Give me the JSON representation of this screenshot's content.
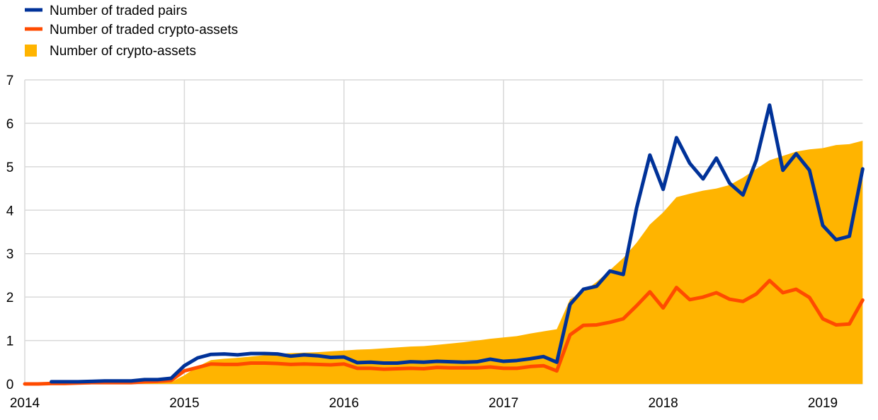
{
  "chart_data": {
    "type": "line",
    "title": "",
    "xlabel": "",
    "ylabel": "",
    "ylim": [
      0,
      7
    ],
    "yticks": [
      "0",
      "1",
      "2",
      "3",
      "4",
      "5",
      "6",
      "7"
    ],
    "xticks": [
      "2014",
      "2015",
      "2016",
      "2017",
      "2018",
      "2019"
    ],
    "x_start": "2014-01",
    "frequency": "monthly",
    "grid": true,
    "legend_position": "top-left",
    "series": [
      {
        "name": "Number of traded pairs",
        "kind": "line",
        "color": "#003299",
        "values": [
          null,
          null,
          0.05,
          0.05,
          0.05,
          0.06,
          0.07,
          0.07,
          0.07,
          0.1,
          0.1,
          0.13,
          0.42,
          0.6,
          0.68,
          0.69,
          0.67,
          0.7,
          0.7,
          0.69,
          0.64,
          0.67,
          0.65,
          0.61,
          0.62,
          0.49,
          0.5,
          0.48,
          0.48,
          0.51,
          0.5,
          0.52,
          0.51,
          0.5,
          0.51,
          0.57,
          0.52,
          0.54,
          0.58,
          0.63,
          0.5,
          1.83,
          2.18,
          2.25,
          2.6,
          2.52,
          4.05,
          5.27,
          4.48,
          5.67,
          5.08,
          4.72,
          5.2,
          4.62,
          4.35,
          5.15,
          6.42,
          4.92,
          5.3,
          4.92,
          3.65,
          3.32,
          3.4,
          4.95
        ]
      },
      {
        "name": "Number of traded crypto-assets",
        "kind": "line",
        "color": "#FF4B00",
        "values": [
          0,
          0,
          0.01,
          0.01,
          0.02,
          0.03,
          0.03,
          0.03,
          0.03,
          0.05,
          0.06,
          0.08,
          0.3,
          0.38,
          0.46,
          0.45,
          0.45,
          0.48,
          0.48,
          0.47,
          0.45,
          0.46,
          0.45,
          0.44,
          0.46,
          0.36,
          0.36,
          0.34,
          0.35,
          0.36,
          0.35,
          0.38,
          0.37,
          0.37,
          0.37,
          0.39,
          0.36,
          0.36,
          0.4,
          0.42,
          0.3,
          1.13,
          1.35,
          1.36,
          1.42,
          1.5,
          1.8,
          2.12,
          1.75,
          2.22,
          1.94,
          2.0,
          2.1,
          1.95,
          1.9,
          2.07,
          2.38,
          2.1,
          2.18,
          1.99,
          1.5,
          1.36,
          1.38,
          1.93
        ]
      },
      {
        "name": "Number of crypto-assets",
        "kind": "area",
        "color": "#FFB400",
        "values": [
          0,
          0,
          0,
          0,
          0,
          0,
          0,
          0,
          0.01,
          0.02,
          0.03,
          0.04,
          0.2,
          0.4,
          0.55,
          0.58,
          0.6,
          0.63,
          0.66,
          0.69,
          0.71,
          0.72,
          0.73,
          0.75,
          0.77,
          0.79,
          0.8,
          0.82,
          0.84,
          0.86,
          0.87,
          0.9,
          0.93,
          0.96,
          1.0,
          1.04,
          1.07,
          1.1,
          1.16,
          1.21,
          1.26,
          1.95,
          2.12,
          2.35,
          2.62,
          2.9,
          3.25,
          3.67,
          3.95,
          4.3,
          4.38,
          4.45,
          4.5,
          4.58,
          4.75,
          4.95,
          5.15,
          5.25,
          5.35,
          5.4,
          5.43,
          5.5,
          5.52,
          5.6
        ]
      }
    ]
  }
}
